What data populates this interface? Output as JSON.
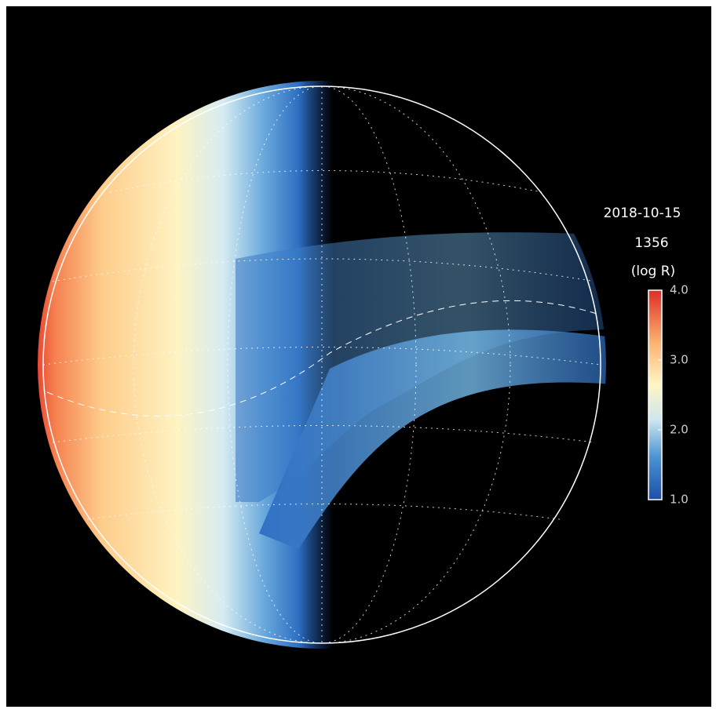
{
  "annotations": {
    "date": "2018-10-15",
    "wavelength": "1356",
    "units": "(log R)"
  },
  "colorbar": {
    "range": [
      1,
      4
    ],
    "ticks": [
      {
        "value": 1,
        "label": "1.0"
      },
      {
        "value": 2,
        "label": "2.0"
      },
      {
        "value": 3,
        "label": "3.0"
      },
      {
        "value": 4,
        "label": "4.0"
      }
    ]
  }
}
